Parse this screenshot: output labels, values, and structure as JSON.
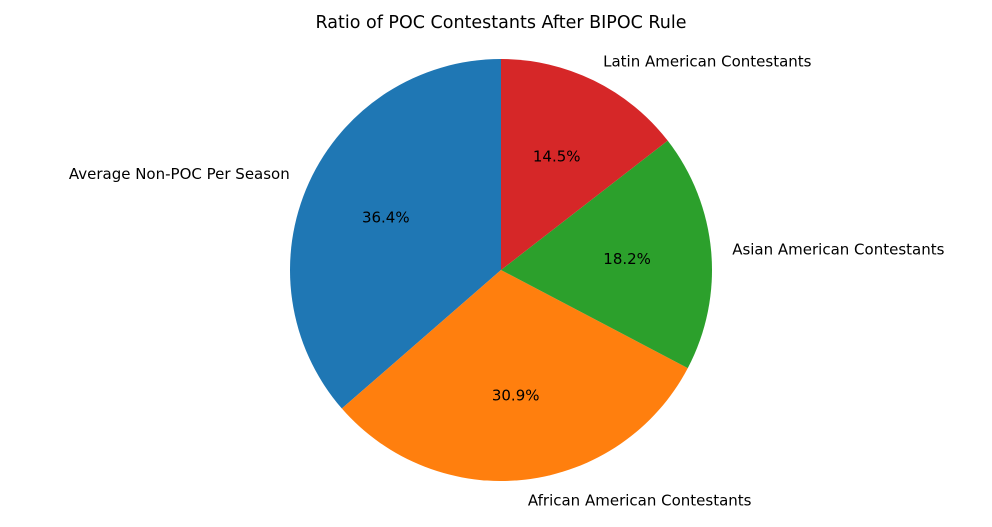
{
  "chart_data": {
    "type": "pie",
    "title": "Ratio of POC Contestants After BIPOC Rule",
    "start_angle_deg": 90,
    "direction": "counterclockwise",
    "slices": [
      {
        "label": "Average Non-POC Per Season",
        "value": 36.4,
        "pct_label": "36.4%",
        "color": "#1f77b4"
      },
      {
        "label": "African American Contestants",
        "value": 30.9,
        "pct_label": "30.9%",
        "color": "#ff7f0e"
      },
      {
        "label": "Asian American Contestants",
        "value": 18.2,
        "pct_label": "18.2%",
        "color": "#2ca02c"
      },
      {
        "label": "Latin American Contestants",
        "value": 14.5,
        "pct_label": "14.5%",
        "color": "#d62728"
      }
    ]
  }
}
